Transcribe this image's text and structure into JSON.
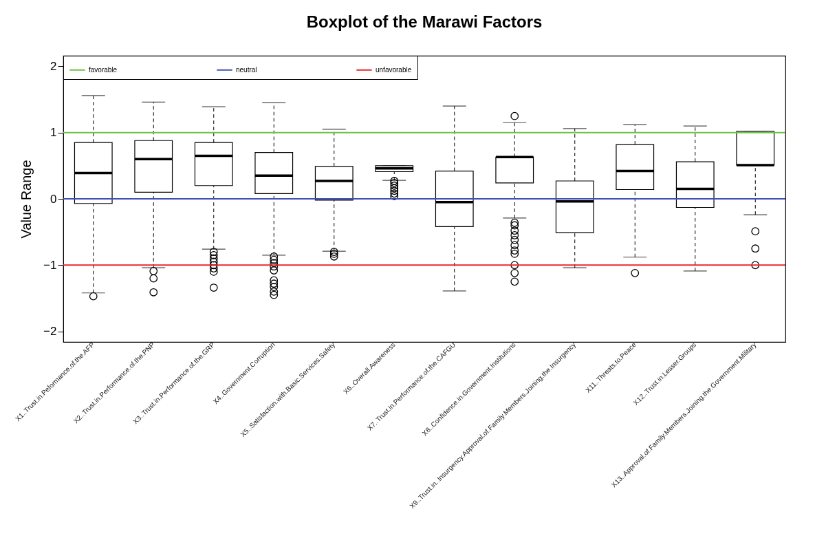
{
  "chart_data": {
    "type": "box",
    "title": "Boxplot of the Marawi Factors",
    "ylabel": "Value Range",
    "categories": [
      "X1..Trust.in.Peformance.of.the.AFP",
      "X2..Trust.in.Performance.of.the.PNP",
      "X3..Trust.in.Performance.of.the.GRP",
      "X4..Government.Corruption",
      "X5..Satisfaction.with.Basic.Services.Safety",
      "X6..Overall.Awareness",
      "X7..Trust.in.Performance.of.the.CAFGU",
      "X8..Confidence.in.Government.Institutions",
      "X9..Trust.in..Insurgency.Approval.of.Family.Members.Joining.the.Insurgency",
      "X11..Threats.to.Peace",
      "X12..Trust.in.Lesser.Groups",
      "X13..Approval.of.Family.Members.Joining.the.Government.Military"
    ],
    "boxes": [
      {
        "low": -1.42,
        "q1": -0.07,
        "median": 0.39,
        "q3": 0.85,
        "high": 1.56,
        "outliers": [
          -1.47
        ]
      },
      {
        "low": -1.04,
        "q1": 0.1,
        "median": 0.6,
        "q3": 0.88,
        "high": 1.46,
        "outliers": [
          -1.09,
          -1.2,
          -1.41
        ]
      },
      {
        "low": -0.76,
        "q1": 0.2,
        "median": 0.65,
        "q3": 0.85,
        "high": 1.39,
        "outliers": [
          -0.8,
          -0.85,
          -0.9,
          -0.95,
          -1.0,
          -1.05,
          -1.1,
          -1.34
        ]
      },
      {
        "low": -0.85,
        "q1": 0.08,
        "median": 0.35,
        "q3": 0.7,
        "high": 1.45,
        "outliers": [
          -0.87,
          -0.92,
          -0.97,
          -1.02,
          -1.08,
          -1.23,
          -1.28,
          -1.33,
          -1.4,
          -1.45
        ]
      },
      {
        "low": -0.79,
        "q1": -0.02,
        "median": 0.27,
        "q3": 0.49,
        "high": 1.05,
        "outliers": [
          -0.8,
          -0.83,
          -0.87
        ]
      },
      {
        "low": 0.28,
        "q1": 0.41,
        "median": 0.46,
        "q3": 0.5,
        "high": 0.5,
        "outliers": [
          0.27,
          0.24,
          0.2,
          0.16,
          0.12,
          0.08,
          0.04
        ]
      },
      {
        "low": -1.39,
        "q1": -0.42,
        "median": -0.05,
        "q3": 0.42,
        "high": 1.4
      },
      {
        "low": -0.29,
        "q1": 0.24,
        "median": 0.63,
        "q3": 0.63,
        "high": 1.15,
        "outliers": [
          1.25,
          -0.36,
          -0.4,
          -0.48,
          -0.55,
          -0.62,
          -0.7,
          -0.78,
          -0.83,
          -1.0,
          -1.12,
          -1.25
        ]
      },
      {
        "low": -1.04,
        "q1": -0.51,
        "median": -0.04,
        "q3": 0.27,
        "high": 1.06
      },
      {
        "low": -0.88,
        "q1": 0.14,
        "median": 0.42,
        "q3": 0.82,
        "high": 1.12,
        "outliers": [
          -1.12
        ]
      },
      {
        "low": -1.09,
        "q1": -0.13,
        "median": 0.15,
        "q3": 0.56,
        "high": 1.1
      },
      {
        "low": -0.24,
        "q1": 0.51,
        "median": 0.51,
        "q3": 1.02,
        "high": 1.02,
        "outliers": [
          -0.49,
          -0.75,
          -1.0
        ]
      }
    ],
    "ylim": [
      -2.16,
      2.16
    ],
    "yticks": [
      -2,
      -1,
      0,
      1,
      2
    ],
    "ref_lines": [
      {
        "axis": "y",
        "value": 1,
        "label": "favorable",
        "color": "#6cc24a"
      },
      {
        "axis": "y",
        "value": 0,
        "label": "neutral",
        "color": "#3f51b5"
      },
      {
        "axis": "y",
        "value": -1,
        "label": "unfavorable",
        "color": "#e8272c"
      }
    ],
    "legend": "top left"
  }
}
